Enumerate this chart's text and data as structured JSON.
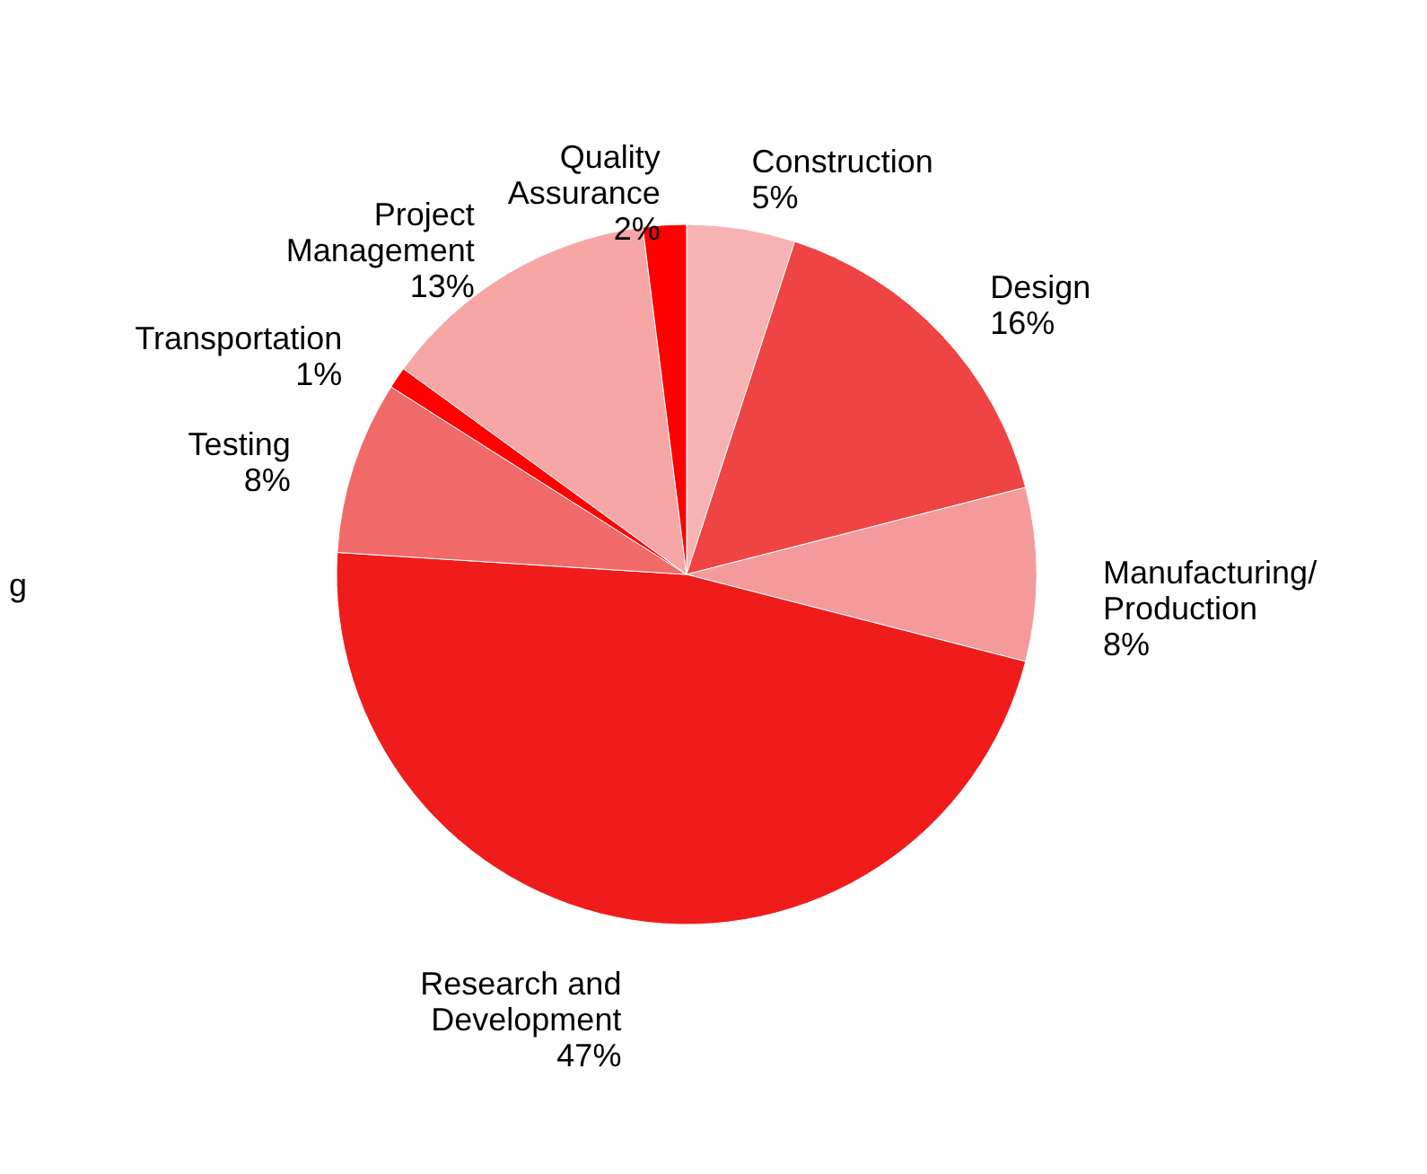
{
  "chart_data": {
    "type": "pie",
    "categories": [
      "Construction",
      "Design",
      "Manufacturing/ Production",
      "Research and Development",
      "Testing",
      "Transportation",
      "Project Management",
      "Quality Assurance"
    ],
    "values": [
      5,
      16,
      8,
      47,
      8,
      1,
      13,
      2
    ],
    "value_labels": [
      "5%",
      "16%",
      "8%",
      "47%",
      "8%",
      "1%",
      "13%",
      "2%"
    ],
    "colors": [
      "#f7b3b3",
      "#ee4444",
      "#f59a9a",
      "#f01c1c",
      "#f06a6a",
      "#ff0000",
      "#f7a6a6",
      "#ff0000"
    ],
    "annotations": [
      "g"
    ],
    "legend": false
  }
}
